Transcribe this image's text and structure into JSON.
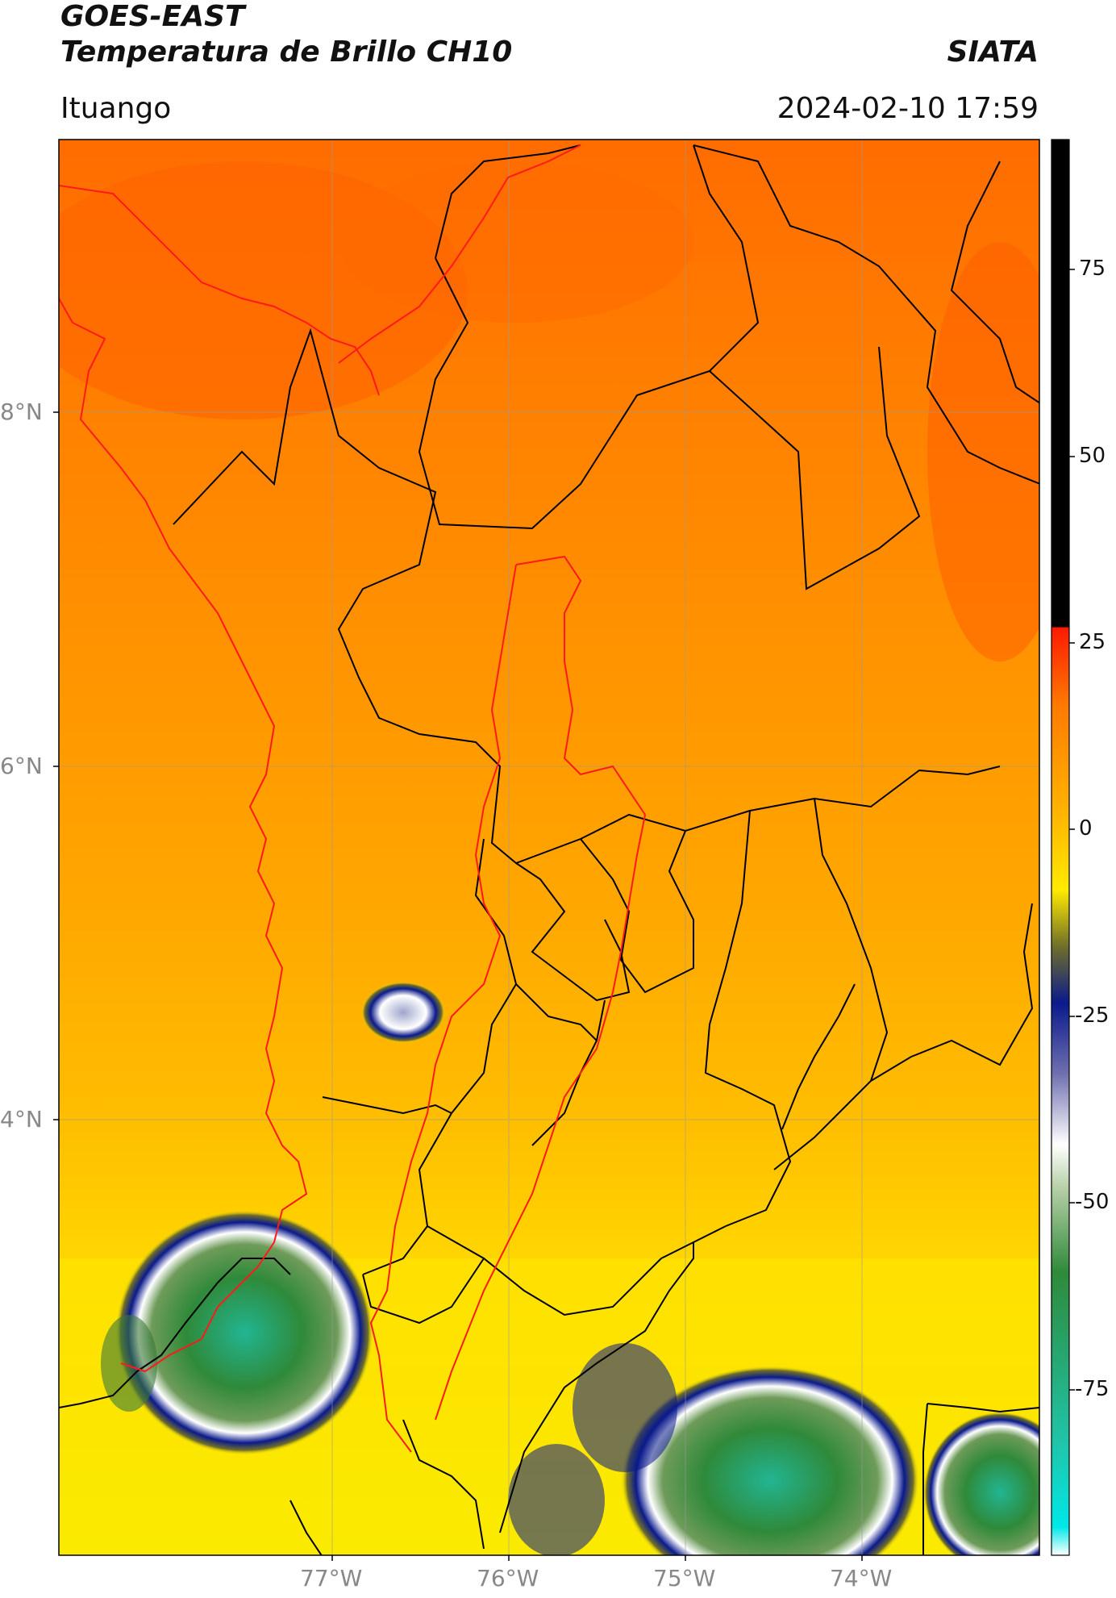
{
  "header": {
    "satellite": "GOES-EAST",
    "product": "Temperatura de Brillo CH10",
    "institution": "SIATA",
    "location": "Ituango",
    "datetime": "2024-02-10 17:59"
  },
  "map": {
    "lat_ticks": [
      "8°N",
      "6°N",
      "4°N"
    ],
    "lon_ticks": [
      "77°W",
      "76°W",
      "75°W",
      "74°W"
    ],
    "boundary_colors": {
      "department": "#000000",
      "region": "#ff1a1a"
    },
    "graticule_color": "#9a9a9a"
  },
  "colorbar": {
    "ticks": [
      "75",
      "50",
      "25",
      "0",
      "-25",
      "-50",
      "-75"
    ],
    "colors": {
      "black": "#000000",
      "red": "#ff1a00",
      "orange": "#ff7a00",
      "yellow": "#ffea00",
      "olive": "#6f6f2a",
      "navy": "#0a1a8c",
      "white": "#ffffff",
      "green": "#2f8a3a",
      "teal": "#1fc4a8",
      "cyan": "#00e8e8"
    }
  }
}
